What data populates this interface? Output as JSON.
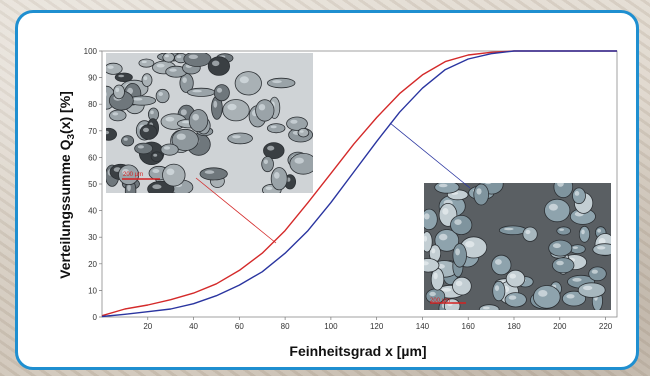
{
  "chart_data": {
    "type": "line",
    "xlabel": "Feinheitsgrad x    [µm]",
    "ylabel_main": "Verteilungssumme Q",
    "ylabel_sub": "3",
    "ylabel_tail": "(x)  [%]",
    "xlim": [
      0,
      225
    ],
    "ylim": [
      0,
      100
    ],
    "xticks": [
      20,
      40,
      60,
      80,
      100,
      120,
      140,
      160,
      180,
      200,
      220
    ],
    "yticks": [
      0,
      10,
      20,
      30,
      40,
      50,
      60,
      70,
      80,
      90,
      100
    ],
    "grid": false,
    "series": [
      {
        "color": "#d42a2a",
        "x": [
          0,
          10,
          20,
          30,
          40,
          50,
          60,
          70,
          80,
          90,
          100,
          110,
          120,
          130,
          140,
          150,
          160,
          170,
          180,
          200,
          225
        ],
        "y": [
          0.5,
          3,
          4.5,
          6.5,
          9,
          12.5,
          17.5,
          24,
          32.5,
          43,
          54,
          65,
          75,
          84,
          91,
          96,
          98.5,
          99.5,
          100,
          100,
          100
        ]
      },
      {
        "color": "#2a35a0",
        "x": [
          0,
          10,
          20,
          30,
          40,
          50,
          60,
          70,
          80,
          90,
          100,
          110,
          120,
          130,
          140,
          150,
          160,
          170,
          180,
          200,
          225
        ],
        "y": [
          0.2,
          1,
          2,
          3,
          5,
          8,
          12,
          17,
          24,
          32.5,
          43,
          54.5,
          66,
          77,
          86,
          93,
          97,
          99,
          100,
          100,
          100
        ]
      }
    ]
  },
  "micrographs": [
    {
      "scale_label": "200 µm"
    },
    {
      "scale_label": "200 µm"
    }
  ]
}
